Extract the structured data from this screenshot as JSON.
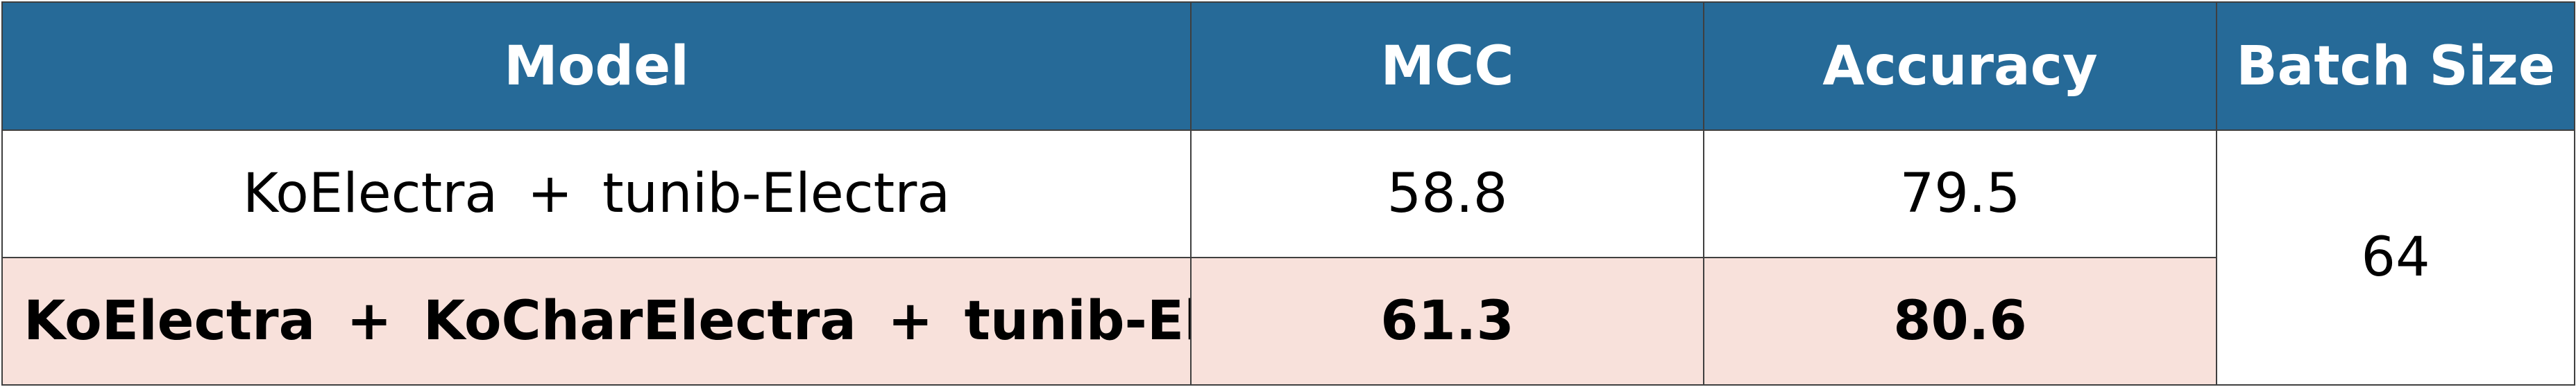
{
  "table": {
    "headers": {
      "model": "Model",
      "mcc": "MCC",
      "accuracy": "Accuracy",
      "batch_size": "Batch Size"
    },
    "rows": [
      {
        "model": "KoElectra + tunib-Electra",
        "mcc": "58.8",
        "accuracy": "79.5",
        "highlight": false
      },
      {
        "model": "KoElectra + KoCharElectra + tunib-Electra",
        "mcc": "61.3",
        "accuracy": "80.6",
        "highlight": true
      }
    ],
    "batch_size_value": "64"
  },
  "colors": {
    "header_bg": "#266A98",
    "header_text": "#ffffff",
    "highlight_bg": "#F8E1DB",
    "border": "#3f3f3f"
  }
}
